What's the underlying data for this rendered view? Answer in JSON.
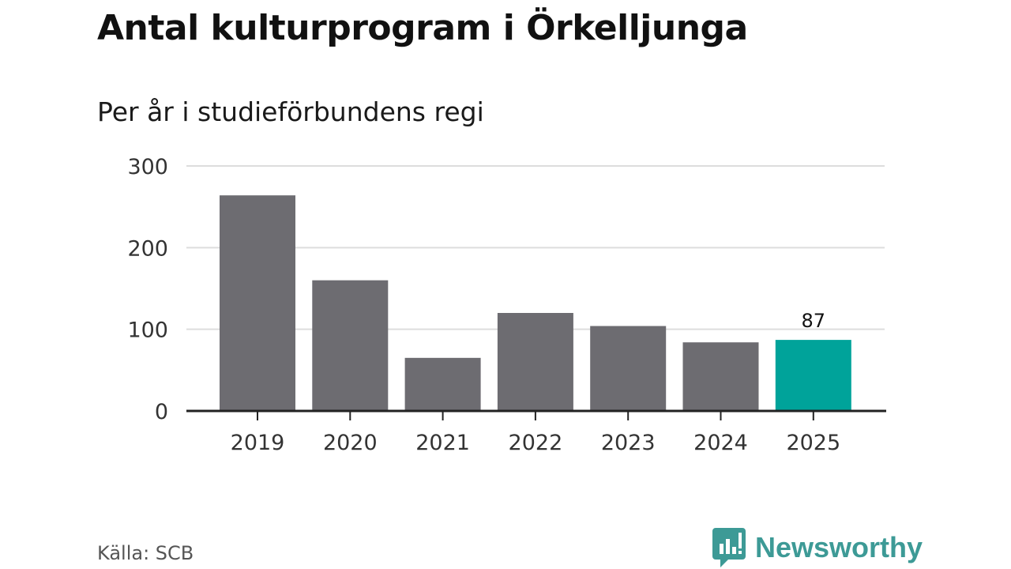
{
  "title": "Antal kulturprogram i Örkelljunga",
  "subtitle": "Per år i studieförbundens regi",
  "source": "Källa: SCB",
  "brand": {
    "name": "Newsworthy",
    "color": "#3d9a96",
    "icon": "newsworthy-logo-icon"
  },
  "colors": {
    "bar": "#6d6c71",
    "highlight": "#00a39a",
    "grid": "#dddddd",
    "axis": "#222222"
  },
  "chart_data": {
    "type": "bar",
    "title": "Antal kulturprogram i Örkelljunga",
    "subtitle": "Per år i studieförbundens regi",
    "xlabel": "",
    "ylabel": "",
    "categories": [
      "2019",
      "2020",
      "2021",
      "2022",
      "2023",
      "2024",
      "2025"
    ],
    "values": [
      264,
      160,
      65,
      120,
      104,
      84,
      87
    ],
    "highlight_index": 6,
    "data_labels": [
      {
        "index": 6,
        "text": "87"
      }
    ],
    "ylim": [
      0,
      300
    ],
    "yticks": [
      0,
      100,
      200,
      300
    ],
    "ytick_labels": [
      "0",
      "100",
      "200",
      "300"
    ],
    "grid": true,
    "legend": "none"
  }
}
